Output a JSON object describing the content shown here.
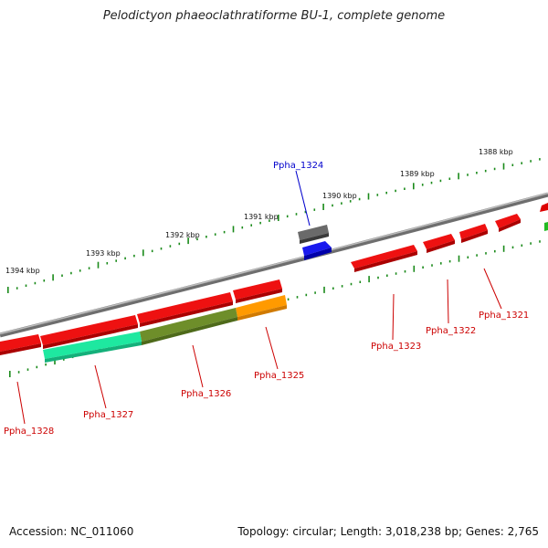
{
  "title": "Pelodictyon phaeoclathratiforme BU-1, complete genome",
  "footer": {
    "accession": "Accession: NC_011060",
    "summary": "Topology: circular; Length: 3,018,238 bp; Genes: 2,765"
  },
  "colors": {
    "backbone": "#808080",
    "ticks": "#1a8a1a",
    "forward_gene": "#ee1111",
    "highlight_label": "#0000cc",
    "normal_label": "#cc0000"
  },
  "scale_labels": [
    {
      "label": "1388 kbp",
      "kbp": 1388
    },
    {
      "label": "1389 kbp",
      "kbp": 1389
    },
    {
      "label": "1390 kbp",
      "kbp": 1390
    },
    {
      "label": "1391 kbp",
      "kbp": 1391
    },
    {
      "label": "1392 kbp",
      "kbp": 1392
    },
    {
      "label": "1393 kbp",
      "kbp": 1393
    },
    {
      "label": "1394 kbp",
      "kbp": 1394
    }
  ],
  "gene_labels": [
    {
      "name": "Ppha_1324",
      "color": "blue"
    },
    {
      "name": "Ppha_1321",
      "color": "red"
    },
    {
      "name": "Ppha_1322",
      "color": "red"
    },
    {
      "name": "Ppha_1323",
      "color": "red"
    },
    {
      "name": "Ppha_1325",
      "color": "red"
    },
    {
      "name": "Ppha_1326",
      "color": "red"
    },
    {
      "name": "Ppha_1327",
      "color": "red"
    },
    {
      "name": "Ppha_1328",
      "color": "red"
    }
  ]
}
